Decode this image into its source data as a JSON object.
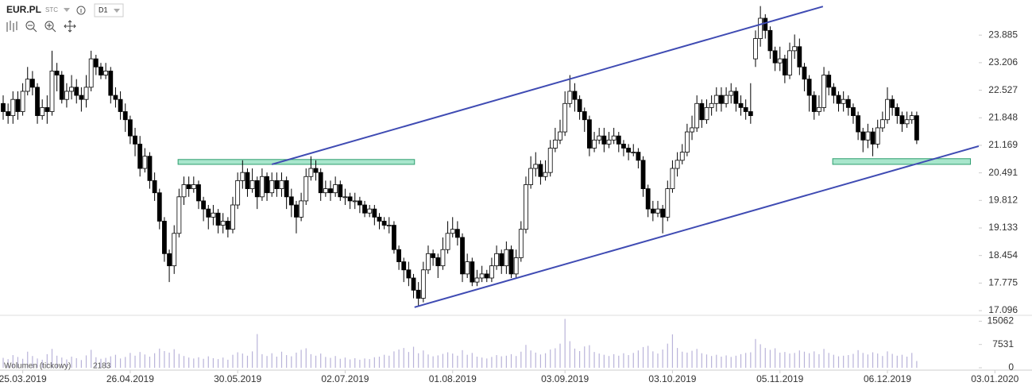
{
  "header": {
    "symbol": "EUR.PL",
    "market": "STC",
    "interval": "D1"
  },
  "chart_data": {
    "type": "candlestick",
    "open": [
      22.2,
      22.0,
      21.9,
      22.3,
      22.0,
      22.5,
      22.8,
      22.6,
      21.9,
      22.1,
      22.0,
      23.0,
      22.9,
      22.3,
      22.5,
      22.6,
      22.4,
      22.3,
      22.6,
      23.3,
      23.1,
      22.9,
      23.0,
      22.4,
      22.3,
      22.0,
      21.8,
      21.4,
      21.2,
      20.6,
      20.9,
      20.3,
      20.0,
      19.3,
      18.5,
      18.2,
      19.0,
      19.9,
      20.2,
      20.1,
      20.2,
      19.8,
      19.6,
      19.4,
      19.5,
      19.2,
      19.3,
      19.1,
      19.7,
      20.3,
      20.5,
      20.1,
      20.3,
      19.9,
      20.4,
      20.0,
      20.3,
      20.1,
      20.3,
      19.9,
      19.7,
      19.4,
      19.8,
      20.4,
      20.6,
      20.5,
      20.0,
      20.1,
      20.0,
      20.2,
      19.9,
      19.9,
      19.8,
      19.8,
      19.7,
      19.5,
      19.6,
      19.4,
      19.3,
      19.2,
      19.2,
      18.6,
      18.3,
      18.1,
      17.9,
      17.6,
      17.4,
      18.1,
      18.5,
      18.4,
      18.2,
      18.6,
      19.0,
      19.1,
      18.9,
      18.0,
      18.3,
      17.8,
      17.9,
      18.0,
      17.9,
      18.2,
      18.5,
      18.2,
      18.6,
      18.0,
      18.4,
      19.1,
      20.2,
      20.6,
      20.7,
      20.4,
      20.5,
      21.1,
      21.3,
      21.5,
      22.2,
      22.5,
      22.3,
      22.0,
      21.8,
      21.1,
      21.3,
      21.4,
      21.2,
      21.3,
      21.4,
      21.2,
      21.1,
      21.0,
      21.0,
      20.8,
      20.1,
      19.6,
      19.5,
      19.6,
      19.4,
      20.1,
      20.6,
      20.8,
      21.0,
      21.5,
      21.6,
      22.2,
      21.8,
      22.1,
      22.2,
      22.4,
      22.2,
      22.4,
      22.5,
      22.2,
      22.1,
      22.0,
      23.3,
      23.8,
      24.3,
      24.0,
      23.5,
      23.2,
      23.3,
      22.9,
      23.5,
      23.6,
      23.1,
      22.8,
      22.4,
      22.0,
      22.1,
      22.9,
      22.6,
      22.4,
      22.2,
      22.3,
      22.1,
      21.9,
      21.5,
      21.3,
      21.5,
      21.2,
      21.6,
      21.8,
      22.3,
      22.1,
      21.9,
      21.7,
      21.8,
      21.9
    ],
    "high": [
      22.4,
      22.2,
      22.5,
      22.5,
      22.7,
      23.1,
      23.0,
      22.7,
      22.3,
      22.4,
      23.5,
      23.2,
      23.0,
      22.7,
      22.9,
      22.8,
      22.6,
      22.9,
      23.5,
      23.4,
      23.2,
      23.2,
      23.1,
      22.6,
      22.5,
      22.2,
      21.9,
      21.6,
      21.4,
      21.1,
      21.0,
      20.5,
      20.1,
      19.4,
      18.6,
      19.2,
      20.1,
      20.4,
      20.4,
      20.4,
      20.3,
      19.9,
      19.7,
      19.7,
      19.6,
      19.5,
      19.4,
      19.9,
      20.5,
      20.8,
      20.6,
      20.6,
      20.4,
      20.6,
      20.5,
      20.5,
      20.5,
      20.5,
      20.4,
      20.1,
      19.8,
      20.0,
      20.6,
      20.9,
      20.8,
      20.6,
      20.3,
      20.3,
      20.4,
      20.3,
      20.1,
      20.0,
      20.0,
      19.9,
      19.8,
      19.7,
      19.7,
      19.5,
      19.4,
      19.4,
      19.3,
      18.7,
      18.4,
      18.3,
      18.0,
      17.8,
      18.3,
      18.7,
      18.6,
      18.5,
      18.9,
      19.3,
      19.4,
      19.3,
      19.0,
      18.5,
      18.4,
      18.1,
      18.2,
      18.1,
      18.4,
      18.7,
      18.6,
      18.8,
      18.7,
      18.6,
      19.3,
      20.4,
      20.9,
      21.0,
      20.8,
      20.8,
      21.3,
      21.6,
      21.8,
      22.5,
      22.9,
      22.7,
      22.4,
      22.1,
      21.9,
      21.5,
      21.6,
      21.6,
      21.5,
      21.6,
      21.5,
      21.3,
      21.2,
      21.2,
      21.1,
      20.9,
      20.2,
      19.8,
      19.8,
      19.7,
      20.3,
      20.8,
      21.0,
      21.2,
      21.7,
      21.9,
      22.4,
      22.3,
      22.3,
      22.4,
      22.6,
      22.6,
      22.6,
      22.7,
      22.6,
      22.4,
      22.3,
      22.7,
      24.0,
      24.6,
      24.4,
      24.1,
      23.6,
      23.6,
      23.4,
      23.7,
      23.9,
      23.8,
      23.2,
      22.9,
      22.5,
      22.4,
      23.1,
      23.0,
      22.7,
      22.5,
      22.5,
      22.4,
      22.2,
      22.0,
      21.6,
      21.7,
      21.6,
      21.8,
      22.0,
      22.6,
      22.4,
      22.2,
      22.0,
      22.0,
      22.0,
      22.0
    ],
    "low": [
      21.8,
      21.7,
      21.7,
      21.8,
      21.9,
      22.4,
      22.4,
      21.7,
      21.8,
      21.7,
      21.9,
      22.5,
      22.2,
      22.1,
      22.3,
      22.2,
      22.0,
      22.1,
      22.5,
      22.9,
      22.8,
      22.8,
      22.2,
      22.1,
      21.8,
      21.5,
      21.2,
      20.9,
      20.4,
      20.5,
      20.1,
      19.8,
      19.1,
      18.3,
      17.8,
      18.0,
      18.9,
      19.7,
      19.9,
      20.0,
      19.6,
      19.3,
      19.1,
      19.2,
      19.0,
      19.0,
      18.9,
      19.0,
      19.6,
      20.1,
      19.9,
      20.0,
      19.6,
      19.8,
      19.8,
      19.9,
      19.9,
      19.9,
      19.6,
      19.4,
      19.0,
      19.3,
      19.7,
      20.3,
      20.3,
      19.8,
      19.9,
      19.8,
      19.9,
      19.8,
      19.7,
      19.6,
      19.6,
      19.5,
      19.4,
      19.4,
      19.2,
      19.1,
      19.1,
      19.0,
      18.5,
      18.1,
      17.8,
      17.7,
      17.4,
      17.2,
      17.3,
      18.0,
      18.2,
      17.9,
      18.1,
      18.5,
      18.9,
      18.7,
      17.8,
      17.9,
      17.7,
      17.7,
      17.8,
      17.8,
      17.8,
      18.1,
      18.0,
      18.0,
      17.9,
      17.9,
      18.3,
      19.0,
      20.1,
      20.4,
      20.2,
      20.3,
      20.4,
      21.0,
      21.2,
      21.4,
      22.1,
      22.0,
      21.8,
      21.5,
      20.9,
      21.0,
      21.2,
      21.0,
      21.1,
      21.2,
      21.0,
      20.9,
      20.8,
      20.9,
      20.6,
      19.9,
      19.4,
      19.3,
      19.4,
      19.0,
      19.3,
      20.0,
      20.4,
      20.7,
      20.9,
      21.3,
      21.5,
      21.6,
      21.7,
      21.9,
      22.0,
      22.0,
      22.1,
      22.2,
      22.0,
      21.9,
      21.8,
      21.7,
      23.1,
      23.6,
      23.8,
      23.3,
      23.0,
      23.0,
      22.7,
      22.8,
      23.3,
      22.9,
      22.5,
      22.0,
      21.8,
      21.9,
      22.0,
      22.4,
      22.2,
      22.0,
      22.0,
      21.9,
      21.7,
      21.3,
      21.0,
      21.1,
      20.9,
      21.1,
      21.5,
      21.7,
      21.9,
      21.7,
      21.5,
      21.6,
      21.7,
      21.2
    ],
    "close": [
      22.0,
      21.9,
      22.3,
      22.0,
      22.5,
      22.8,
      22.6,
      21.9,
      22.1,
      22.0,
      23.0,
      22.9,
      22.3,
      22.5,
      22.6,
      22.4,
      22.3,
      22.6,
      23.3,
      23.1,
      22.9,
      23.0,
      22.4,
      22.3,
      22.0,
      21.8,
      21.4,
      21.2,
      20.6,
      20.9,
      20.3,
      20.0,
      19.3,
      18.5,
      18.2,
      19.0,
      19.9,
      20.2,
      20.1,
      20.2,
      19.8,
      19.6,
      19.4,
      19.5,
      19.2,
      19.3,
      19.1,
      19.7,
      20.3,
      20.5,
      20.1,
      20.3,
      19.9,
      20.4,
      20.0,
      20.3,
      20.1,
      20.3,
      19.9,
      19.7,
      19.4,
      19.8,
      20.4,
      20.6,
      20.5,
      20.0,
      20.1,
      20.0,
      20.2,
      19.9,
      19.9,
      19.8,
      19.8,
      19.7,
      19.5,
      19.6,
      19.4,
      19.3,
      19.2,
      19.2,
      18.6,
      18.3,
      18.1,
      17.9,
      17.6,
      17.4,
      18.1,
      18.5,
      18.4,
      18.2,
      18.6,
      19.0,
      19.1,
      18.9,
      18.0,
      18.3,
      17.8,
      17.9,
      18.0,
      17.9,
      18.2,
      18.5,
      18.2,
      18.6,
      18.0,
      18.4,
      19.1,
      20.2,
      20.6,
      20.7,
      20.4,
      20.5,
      21.1,
      21.3,
      21.5,
      22.2,
      22.5,
      22.3,
      22.0,
      21.8,
      21.1,
      21.3,
      21.4,
      21.2,
      21.3,
      21.4,
      21.2,
      21.1,
      21.0,
      21.0,
      20.8,
      20.1,
      19.6,
      19.5,
      19.6,
      19.4,
      20.1,
      20.6,
      20.8,
      21.0,
      21.5,
      21.6,
      22.2,
      21.8,
      22.1,
      22.2,
      22.4,
      22.2,
      22.4,
      22.5,
      22.2,
      22.1,
      22.0,
      21.9,
      23.8,
      24.3,
      24.0,
      23.5,
      23.2,
      23.3,
      22.9,
      23.5,
      23.6,
      23.1,
      22.8,
      22.4,
      22.0,
      22.1,
      22.9,
      22.6,
      22.4,
      22.2,
      22.3,
      22.1,
      21.9,
      21.5,
      21.3,
      21.5,
      21.2,
      21.6,
      21.8,
      22.3,
      22.1,
      21.9,
      21.7,
      21.8,
      21.9,
      21.3
    ],
    "volume": [
      3200,
      2800,
      4100,
      3500,
      2900,
      5200,
      3800,
      3000,
      2600,
      4400,
      6100,
      3900,
      3300,
      2700,
      3600,
      3100,
      2500,
      4000,
      5800,
      3400,
      2900,
      3200,
      3700,
      4200,
      3000,
      3500,
      4800,
      3900,
      5100,
      4300,
      3600,
      4700,
      6200,
      5400,
      4900,
      6000,
      4500,
      3800,
      3300,
      3000,
      3400,
      2900,
      3700,
      3100,
      2800,
      3300,
      2600,
      4200,
      5000,
      4600,
      3900,
      5300,
      10900,
      4400,
      3800,
      4700,
      3600,
      5200,
      4100,
      3700,
      4900,
      5800,
      6300,
      4400,
      3900,
      4600,
      3500,
      3200,
      3800,
      2900,
      3300,
      2700,
      3100,
      2600,
      3000,
      2800,
      3400,
      3600,
      4200,
      3900,
      5300,
      5900,
      6400,
      5100,
      6800,
      4700,
      5600,
      4300,
      3700,
      4000,
      4500,
      5000,
      4600,
      3900,
      5700,
      4200,
      4800,
      3600,
      3300,
      3000,
      3500,
      4100,
      3700,
      3900,
      4400,
      3800,
      5200,
      7400,
      5600,
      4900,
      4300,
      4700,
      5900,
      6300,
      7800,
      15800,
      8600,
      6200,
      5400,
      6900,
      7300,
      5100,
      4600,
      4200,
      3800,
      4400,
      3900,
      4700,
      4100,
      4800,
      5600,
      6700,
      7100,
      5300,
      4600,
      5900,
      7800,
      10800,
      6400,
      5200,
      4900,
      5500,
      6100,
      4700,
      4300,
      3800,
      4200,
      3600,
      4000,
      3500,
      3900,
      4400,
      4800,
      5000,
      9300,
      7600,
      6400,
      5800,
      6300,
      4900,
      5100,
      4600,
      4800,
      5600,
      5200,
      4700,
      5300,
      4400,
      6100,
      4800,
      4200,
      3700,
      3900,
      4100,
      4500,
      5700,
      4800,
      4300,
      5000,
      4600,
      3800,
      5300,
      4500,
      3900,
      4200,
      3600,
      4800,
      2183
    ],
    "volume_label": "Wolumen (tickowy)",
    "up_color": "#ffffff",
    "down_color": "#000000",
    "volume_color": "#b9b3d9",
    "xlim": [
      -0.65,
      199.7
    ],
    "xticks": [
      {
        "value": 4,
        "label": "25.03.2019"
      },
      {
        "value": 26,
        "label": "26.04.2019"
      },
      {
        "value": 48,
        "label": "30.05.2019"
      },
      {
        "value": 70,
        "label": "02.07.2019"
      },
      {
        "value": 92,
        "label": "01.08.2019"
      },
      {
        "value": 115,
        "label": "03.09.2019"
      },
      {
        "value": 137,
        "label": "03.10.2019"
      },
      {
        "value": 159,
        "label": "05.11.2019"
      },
      {
        "value": 181,
        "label": "06.12.2019"
      },
      {
        "value": 203,
        "label": "03.01.2020"
      }
    ],
    "ylim": [
      16.98,
      24.75
    ],
    "yticks": [
      23.885,
      23.206,
      22.527,
      21.848,
      21.169,
      20.491,
      19.812,
      19.133,
      18.454,
      17.775,
      17.096
    ],
    "volume_ylim": [
      0,
      16700
    ],
    "volume_yticks": [
      15062,
      7531,
      0
    ],
    "trend_lines": {
      "color": "#3f4bb3",
      "lines": [
        {
          "x": [
            55,
            167.8
          ],
          "y": [
            20.7,
            24.59
          ]
        },
        {
          "x": [
            84.2,
            199.7
          ],
          "y": [
            17.18,
            21.15
          ]
        }
      ]
    },
    "zones": {
      "color": "#a8e6cc",
      "border": "#2e9e6f",
      "items": [
        {
          "x": [
            35.8,
            84.2
          ],
          "y": [
            20.7,
            20.82
          ]
        },
        {
          "x": [
            169.8,
            198
          ],
          "y": [
            20.7,
            20.84
          ]
        }
      ]
    }
  }
}
